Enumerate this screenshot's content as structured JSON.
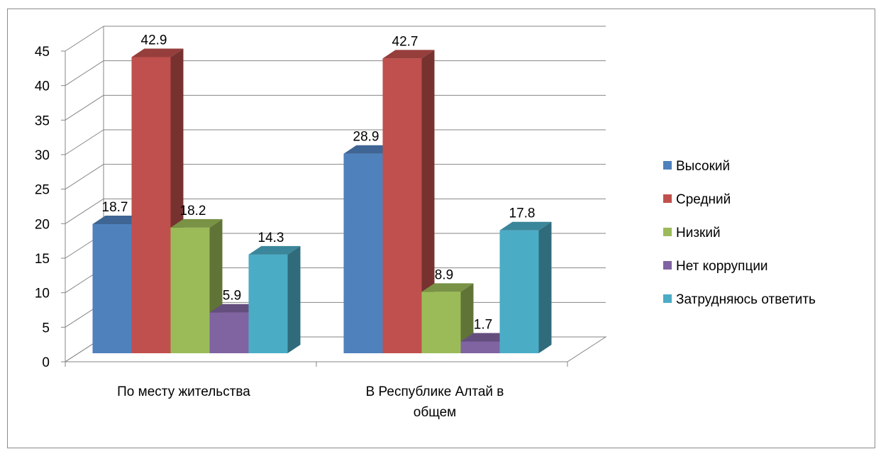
{
  "chart_data": {
    "type": "bar",
    "style": "3d-clustered-column",
    "categories": [
      [
        "По месту жительства"
      ],
      [
        "В Республике Алтай в",
        "общем"
      ]
    ],
    "series": [
      {
        "name": "Высокий",
        "color": "#4F81BD",
        "values": [
          18.7,
          28.9
        ]
      },
      {
        "name": "Средний",
        "color": "#C0504D",
        "values": [
          42.9,
          42.7
        ]
      },
      {
        "name": "Низкий",
        "color": "#9BBB59",
        "values": [
          18.2,
          8.9
        ]
      },
      {
        "name": "Нет коррупции",
        "color": "#8064A2",
        "values": [
          5.9,
          1.7
        ]
      },
      {
        "name": "Затрудняюсь ответить",
        "color": "#4BACC6",
        "values": [
          14.3,
          17.8
        ]
      }
    ],
    "data_labels": [
      [
        "18.7",
        "28.9"
      ],
      [
        "42.9",
        "42.7"
      ],
      [
        "18.2",
        "8.9"
      ],
      [
        "5.9",
        "1.7"
      ],
      [
        "14.3",
        "17.8"
      ]
    ],
    "y_ticks": [
      "0",
      "5",
      "10",
      "15",
      "20",
      "25",
      "30",
      "35",
      "40",
      "45"
    ],
    "ylim": [
      0,
      45
    ],
    "grid": true,
    "legend_position": "right"
  }
}
